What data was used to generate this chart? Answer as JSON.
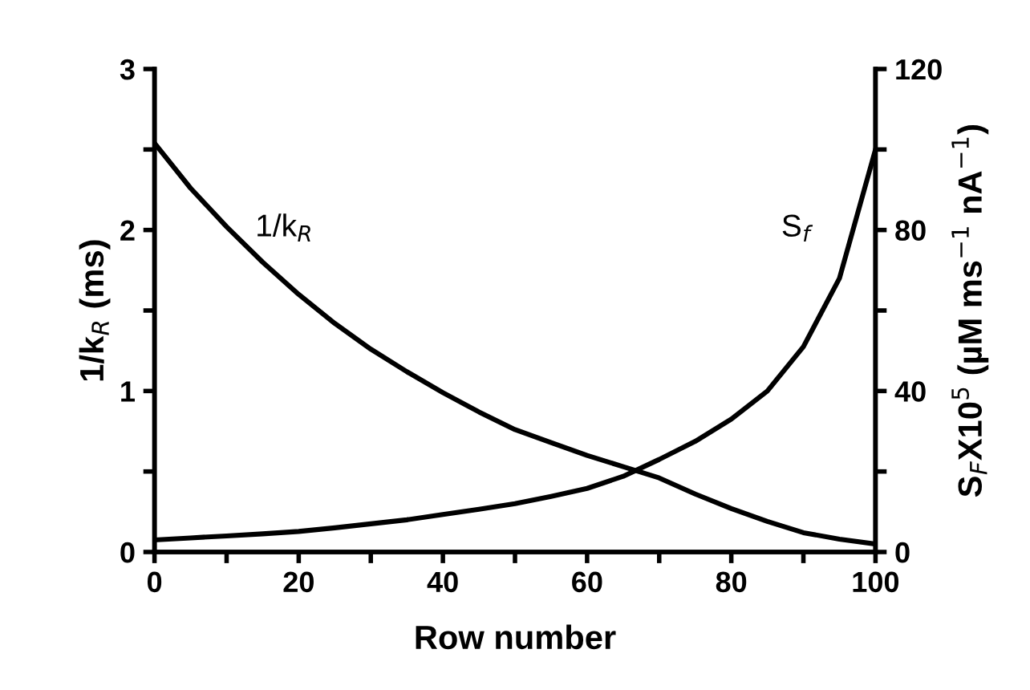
{
  "chart_data": {
    "type": "line",
    "xlabel": "Row number",
    "ylabel": "1/k$_{R}$ (ms)",
    "y2label": "S$_{F}$X10$^{5}$ (µM ms$^{−1}$ nA$^{−1}$)",
    "x": [
      0,
      5,
      10,
      15,
      20,
      25,
      30,
      35,
      40,
      45,
      50,
      55,
      60,
      65,
      70,
      75,
      80,
      85,
      90,
      95,
      100
    ],
    "series": [
      {
        "color": "#000000",
        "values": [
          2.54,
          2.26,
          2.02,
          1.8,
          1.6,
          1.42,
          1.26,
          1.12,
          0.99,
          0.87,
          0.76,
          0.68,
          0.6,
          0.53,
          0.46,
          0.36,
          0.27,
          0.19,
          0.12,
          0.08,
          0.05
        ]
      },
      {
        "color": "#000000",
        "axis": "y2",
        "values": [
          3,
          3.5,
          4,
          4.5,
          5.1,
          6,
          7,
          8,
          9.3,
          10.6,
          12,
          13.8,
          15.8,
          18.8,
          23,
          27.5,
          33,
          40,
          51,
          68,
          100
        ]
      }
    ],
    "annotations": [
      "1/k$_{R}$",
      "S$_{f}$"
    ],
    "xlim": [
      0,
      100
    ],
    "xticks": [
      0,
      {
        "value": 10,
        "label": null
      },
      20,
      {
        "value": 30,
        "label": null
      },
      40,
      {
        "value": 50,
        "label": null
      },
      60,
      {
        "value": 70,
        "label": null
      },
      80,
      {
        "value": 90,
        "label": null
      },
      100
    ],
    "ylim": [
      0,
      3
    ],
    "yticks": [
      0,
      {
        "value": 0.5,
        "label": null
      },
      1,
      {
        "value": 1.5,
        "label": null
      },
      2,
      {
        "value": 2.5,
        "label": null
      },
      3
    ],
    "y2lim": [
      0,
      120
    ],
    "y2ticks": [
      0,
      {
        "value": 20,
        "label": null
      },
      40,
      {
        "value": 60,
        "label": null
      },
      80,
      {
        "value": 100,
        "label": null
      },
      120
    ],
    "grid": false,
    "legend": false,
    "marker": "none",
    "line_style": "solid"
  }
}
